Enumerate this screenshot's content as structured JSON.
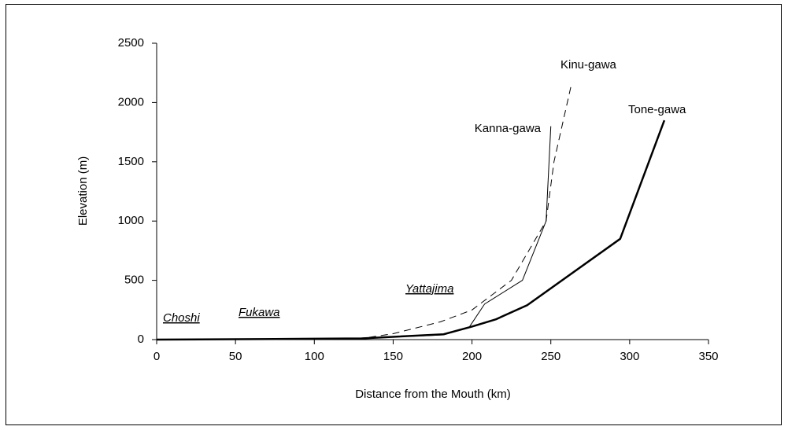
{
  "chart_data": {
    "type": "line",
    "xlabel": "Distance from the Mouth (km)",
    "ylabel": "Elevation (m)",
    "xlim": [
      0,
      350
    ],
    "xticks": [
      0,
      50,
      100,
      150,
      200,
      250,
      300,
      350
    ],
    "ylim": [
      0,
      2500
    ],
    "yticks": [
      0,
      500,
      1000,
      1500,
      2000,
      2500
    ],
    "series": [
      {
        "name": "Tone-gawa",
        "color": "#000000",
        "style": "thick",
        "x": [
          0,
          75,
          130,
          182,
          200,
          215,
          235,
          294,
          322
        ],
        "values": [
          0,
          5,
          10,
          45,
          110,
          170,
          290,
          850,
          1850
        ]
      },
      {
        "name": "Kanna-gawa",
        "color": "#000000",
        "style": "thin",
        "x": [
          0,
          75,
          130,
          182,
          198,
          208,
          232,
          247,
          250
        ],
        "values": [
          0,
          5,
          10,
          40,
          100,
          300,
          500,
          1000,
          1800
        ]
      },
      {
        "name": "Kinu-gawa",
        "color": "#000000",
        "style": "dashed",
        "x": [
          0,
          75,
          130,
          150,
          180,
          200,
          225,
          247,
          252,
          263
        ],
        "values": [
          0,
          5,
          10,
          50,
          150,
          250,
          500,
          1000,
          1500,
          2150
        ]
      }
    ],
    "annotations": [
      "Choshi",
      "Fukawa",
      "Yattajima"
    ]
  }
}
